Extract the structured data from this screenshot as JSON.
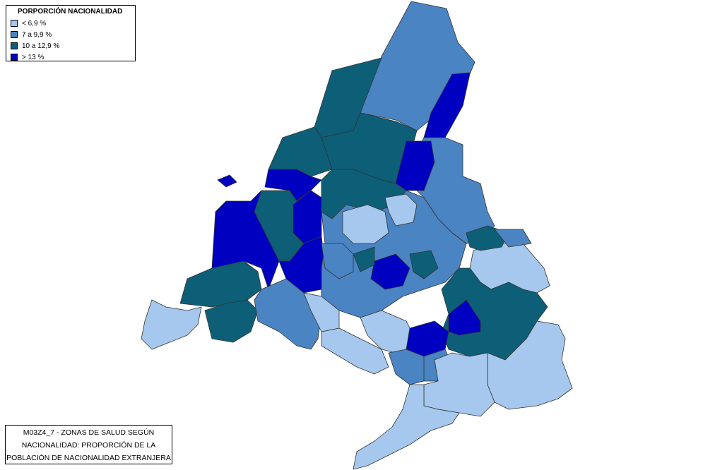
{
  "legend": {
    "title": "PORPORCIÓN NACIONALIDAD",
    "items": [
      {
        "label": "< 6,9 %",
        "color": "#a6c8ee"
      },
      {
        "label": "7 a 9,9 %",
        "color": "#4a84c2"
      },
      {
        "label": "10 a 12,9 %",
        "color": "#0d5f78"
      },
      {
        "label": "> 13 %",
        "color": "#0000c0"
      }
    ]
  },
  "caption": {
    "line1": "M03Z4_7 - ZONAS DE SALUD SEGÚN",
    "line2": "NACIONALIDAD: PROPORCIÓN DE LA",
    "line3": "POBLACIÓN DE NACIONALIDAD EXTRANJERA"
  },
  "map": {
    "region_colors": {
      "low": "#a6c8ee",
      "mid": "#4a84c2",
      "high": "#0d5f78",
      "top": "#0000c0"
    }
  }
}
